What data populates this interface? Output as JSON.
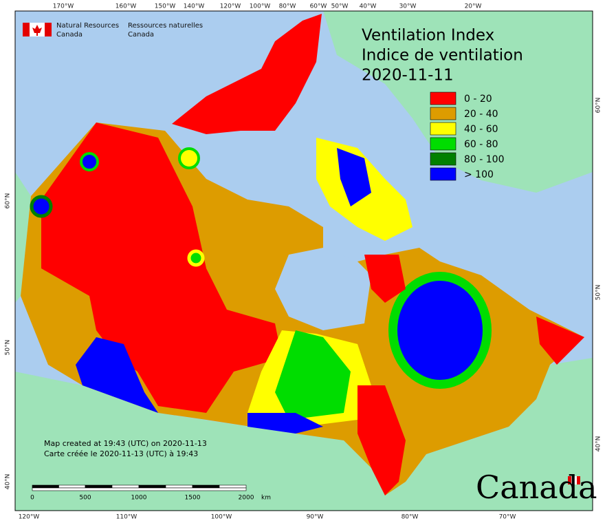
{
  "header": {
    "agency_en": [
      "Natural Resources",
      "Canada"
    ],
    "agency_fr": [
      "Ressources naturelles",
      "Canada"
    ]
  },
  "title": [
    "Ventilation Index",
    "Indice de ventilation",
    "2020-11-11"
  ],
  "legend": [
    {
      "label": "0 - 20",
      "color": "#ff0000"
    },
    {
      "label": "20 - 40",
      "color": "#dd9c00"
    },
    {
      "label": "40 - 60",
      "color": "#ffff00"
    },
    {
      "label": "60 - 80",
      "color": "#00dd00"
    },
    {
      "label": "80 - 100",
      "color": "#008000"
    },
    {
      "label": "> 100",
      "color": "#0000ff"
    }
  ],
  "top_longitudes": [
    "170°W",
    "160°W",
    "150°W",
    "140°W",
    "120°W",
    "100°W",
    "80°W",
    "60°W",
    "50°W",
    "40°W",
    "30°W",
    "20°W"
  ],
  "bottom_longitudes": [
    "120°W",
    "110°W",
    "100°W",
    "90°W",
    "80°W",
    "70°W"
  ],
  "left_latitudes": [
    "60°N",
    "50°N",
    "40°N"
  ],
  "right_latitudes": [
    "60°N",
    "50°N",
    "40°N"
  ],
  "notes": [
    "Map created at 19:43 (UTC) on 2020-11-13",
    "Carte créée le 2020-11-13 (UTC) à 19:43"
  ],
  "scale": {
    "ticks": [
      "0",
      "500",
      "1000",
      "1500",
      "2000"
    ],
    "unit": "km"
  },
  "wordmark": "Canada"
}
